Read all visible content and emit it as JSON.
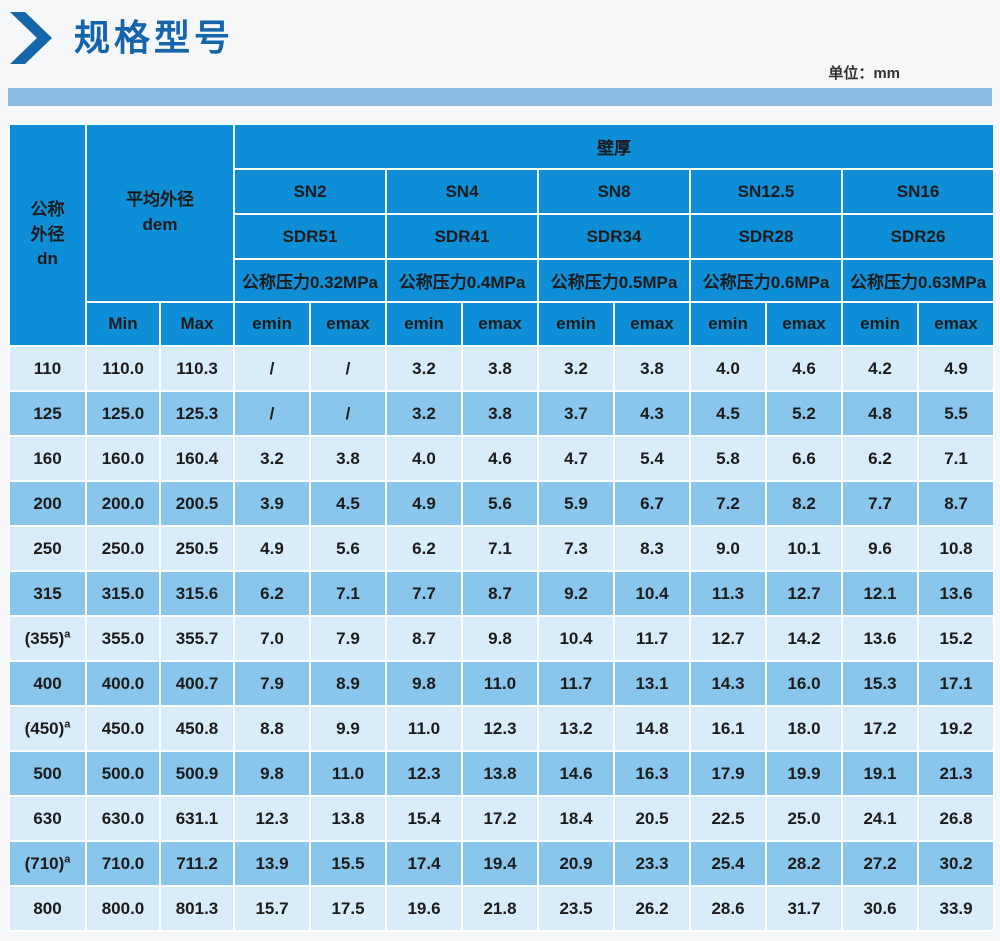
{
  "page": {
    "title": "规格型号",
    "unit_label": "单位：mm"
  },
  "table": {
    "col_dn_header": "公称\n外径\ndn",
    "col_dem_header": "平均外径\ndem",
    "wall_header": "壁厚",
    "sn_headers": [
      "SN2",
      "SN4",
      "SN8",
      "SN12.5",
      "SN16"
    ],
    "sdr_headers": [
      "SDR51",
      "SDR41",
      "SDR34",
      "SDR28",
      "SDR26"
    ],
    "pressure_headers": [
      "公称压力0.32MPa",
      "公称压力0.4MPa",
      "公称压力0.5MPa",
      "公称压力0.6MPa",
      "公称压力0.63MPa"
    ],
    "min_label": "Min",
    "max_label": "Max",
    "emin_label": "emin",
    "emax_label": "emax",
    "rows": [
      {
        "dn": "110",
        "dn_sup": "",
        "min": "110.0",
        "max": "110.3",
        "values": [
          "/",
          "/",
          "3.2",
          "3.8",
          "3.2",
          "3.8",
          "4.0",
          "4.6",
          "4.2",
          "4.9"
        ]
      },
      {
        "dn": "125",
        "dn_sup": "",
        "min": "125.0",
        "max": "125.3",
        "values": [
          "/",
          "/",
          "3.2",
          "3.8",
          "3.7",
          "4.3",
          "4.5",
          "5.2",
          "4.8",
          "5.5"
        ]
      },
      {
        "dn": "160",
        "dn_sup": "",
        "min": "160.0",
        "max": "160.4",
        "values": [
          "3.2",
          "3.8",
          "4.0",
          "4.6",
          "4.7",
          "5.4",
          "5.8",
          "6.6",
          "6.2",
          "7.1"
        ]
      },
      {
        "dn": "200",
        "dn_sup": "",
        "min": "200.0",
        "max": "200.5",
        "values": [
          "3.9",
          "4.5",
          "4.9",
          "5.6",
          "5.9",
          "6.7",
          "7.2",
          "8.2",
          "7.7",
          "8.7"
        ]
      },
      {
        "dn": "250",
        "dn_sup": "",
        "min": "250.0",
        "max": "250.5",
        "values": [
          "4.9",
          "5.6",
          "6.2",
          "7.1",
          "7.3",
          "8.3",
          "9.0",
          "10.1",
          "9.6",
          "10.8"
        ]
      },
      {
        "dn": "315",
        "dn_sup": "",
        "min": "315.0",
        "max": "315.6",
        "values": [
          "6.2",
          "7.1",
          "7.7",
          "8.7",
          "9.2",
          "10.4",
          "11.3",
          "12.7",
          "12.1",
          "13.6"
        ]
      },
      {
        "dn": "(355)",
        "dn_sup": "a",
        "min": "355.0",
        "max": "355.7",
        "values": [
          "7.0",
          "7.9",
          "8.7",
          "9.8",
          "10.4",
          "11.7",
          "12.7",
          "14.2",
          "13.6",
          "15.2"
        ]
      },
      {
        "dn": "400",
        "dn_sup": "",
        "min": "400.0",
        "max": "400.7",
        "values": [
          "7.9",
          "8.9",
          "9.8",
          "11.0",
          "11.7",
          "13.1",
          "14.3",
          "16.0",
          "15.3",
          "17.1"
        ]
      },
      {
        "dn": "(450)",
        "dn_sup": "a",
        "min": "450.0",
        "max": "450.8",
        "values": [
          "8.8",
          "9.9",
          "11.0",
          "12.3",
          "13.2",
          "14.8",
          "16.1",
          "18.0",
          "17.2",
          "19.2"
        ]
      },
      {
        "dn": "500",
        "dn_sup": "",
        "min": "500.0",
        "max": "500.9",
        "values": [
          "9.8",
          "11.0",
          "12.3",
          "13.8",
          "14.6",
          "16.3",
          "17.9",
          "19.9",
          "19.1",
          "21.3"
        ]
      },
      {
        "dn": "630",
        "dn_sup": "",
        "min": "630.0",
        "max": "631.1",
        "values": [
          "12.3",
          "13.8",
          "15.4",
          "17.2",
          "18.4",
          "20.5",
          "22.5",
          "25.0",
          "24.1",
          "26.8"
        ]
      },
      {
        "dn": "(710)",
        "dn_sup": "a",
        "min": "710.0",
        "max": "711.2",
        "values": [
          "13.9",
          "15.5",
          "17.4",
          "19.4",
          "20.9",
          "23.3",
          "25.4",
          "28.2",
          "27.2",
          "30.2"
        ]
      },
      {
        "dn": "800",
        "dn_sup": "",
        "min": "800.0",
        "max": "801.3",
        "values": [
          "15.7",
          "17.5",
          "19.6",
          "21.8",
          "23.5",
          "26.2",
          "28.6",
          "31.7",
          "30.6",
          "33.9"
        ]
      }
    ]
  }
}
